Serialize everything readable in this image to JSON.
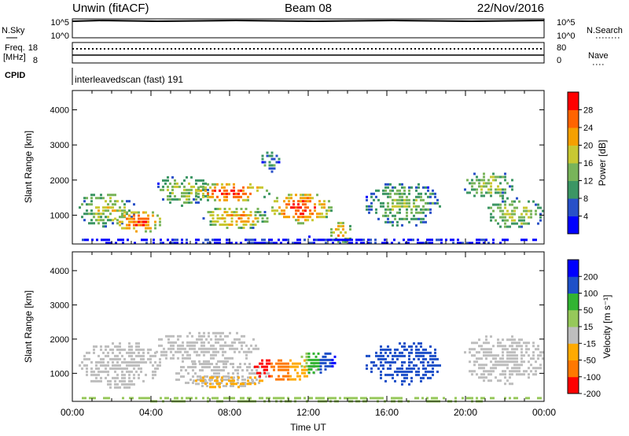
{
  "header": {
    "station": "Unwin (fitACF)",
    "beam": "Beam 08",
    "date": "22/Nov/2016"
  },
  "status_panels": {
    "nsky": {
      "label": "N.Sky",
      "tick_top": "10^5",
      "tick_bottom": "10^0",
      "right_label": "N.Search",
      "right_tick_top": "10^5",
      "right_tick_bottom": "10^0"
    },
    "freq": {
      "label_line1": "Freq.",
      "label_line2": "[MHz]",
      "tick_top": "18",
      "tick_bottom": "8",
      "right_label": "Nave",
      "right_tick_top": "80",
      "right_tick_bottom": "0"
    },
    "cpid": {
      "label": "CPID",
      "text": "interleavedscan (fast) 191"
    }
  },
  "chart_data": [
    {
      "type": "heatmap",
      "name": "power",
      "ylabel": "Slant Range [km]",
      "ylim": [
        180,
        4550
      ],
      "y_ticks": [
        "1000",
        "2000",
        "3000",
        "4000"
      ],
      "colorbar": {
        "title": "Power [dB]",
        "ticks": [
          "4",
          "8",
          "12",
          "16",
          "20",
          "24",
          "28"
        ],
        "range": [
          0,
          32
        ],
        "colors": [
          "#0000ff",
          "#2850c8",
          "#3c9664",
          "#78b45a",
          "#c8c832",
          "#f5a000",
          "#ff6400",
          "#ff0000"
        ]
      },
      "blobs": [
        {
          "t": [
            0.2,
            3.2
          ],
          "r": [
            700,
            1700
          ],
          "level": 0.55
        },
        {
          "t": [
            2.0,
            4.5
          ],
          "r": [
            500,
            1200
          ],
          "level": 0.85
        },
        {
          "t": [
            4.2,
            7.0
          ],
          "r": [
            1300,
            2200
          ],
          "level": 0.5
        },
        {
          "t": [
            6.0,
            10.0
          ],
          "r": [
            1400,
            2000
          ],
          "level": 0.9
        },
        {
          "t": [
            6.5,
            10.0
          ],
          "r": [
            600,
            1300
          ],
          "level": 0.7
        },
        {
          "t": [
            9.5,
            10.5
          ],
          "r": [
            2200,
            2900
          ],
          "level": 0.35
        },
        {
          "t": [
            10.0,
            13.2
          ],
          "r": [
            800,
            1700
          ],
          "level": 0.9
        },
        {
          "t": [
            13.0,
            14.2
          ],
          "r": [
            200,
            900
          ],
          "level": 0.7
        },
        {
          "t": [
            14.8,
            18.7
          ],
          "r": [
            700,
            2000
          ],
          "level": 0.45
        },
        {
          "t": [
            19.8,
            22.5
          ],
          "r": [
            1500,
            2300
          ],
          "level": 0.5
        },
        {
          "t": [
            21.0,
            24.0
          ],
          "r": [
            600,
            1600
          ],
          "level": 0.5
        },
        {
          "t": [
            0.0,
            24.0
          ],
          "r": [
            180,
            420
          ],
          "level": 0.1
        }
      ]
    },
    {
      "type": "heatmap",
      "name": "velocity",
      "xlabel": "Time UT",
      "ylabel": "Slant Range [km]",
      "xlim": [
        0,
        24
      ],
      "x_ticks": [
        "00:00",
        "04:00",
        "08:00",
        "12:00",
        "16:00",
        "20:00",
        "00:00"
      ],
      "ylim": [
        180,
        4550
      ],
      "y_ticks": [
        "1000",
        "2000",
        "3000",
        "4000"
      ],
      "colorbar": {
        "title": "Velocity [m s⁻¹]",
        "ticks": [
          "200",
          "100",
          "50",
          "15",
          "-15",
          "-50",
          "-100",
          "-200"
        ],
        "range": [
          -250,
          250
        ],
        "colors": [
          "#ff0000",
          "#ff7800",
          "#ffaa00",
          "#bebebe",
          "#96c85a",
          "#32b432",
          "#1e50c8",
          "#0000ff"
        ]
      },
      "blobs": [
        {
          "t": [
            0.2,
            4.5
          ],
          "r": [
            600,
            2000
          ],
          "vel": 0
        },
        {
          "t": [
            4.0,
            9.5
          ],
          "r": [
            1300,
            2300
          ],
          "vel": 0
        },
        {
          "t": [
            5.0,
            10.0
          ],
          "r": [
            600,
            1400
          ],
          "vel": 0
        },
        {
          "t": [
            6.0,
            9.8
          ],
          "r": [
            600,
            1000
          ],
          "vel": -70
        },
        {
          "t": [
            9.0,
            12.5
          ],
          "r": [
            800,
            1500
          ],
          "vel": -150
        },
        {
          "t": [
            11.5,
            13.5
          ],
          "r": [
            1000,
            1700
          ],
          "vel": 80
        },
        {
          "t": [
            14.8,
            18.8
          ],
          "r": [
            700,
            2000
          ],
          "vel": 150
        },
        {
          "t": [
            19.8,
            24.0
          ],
          "r": [
            700,
            2200
          ],
          "vel": 0
        },
        {
          "t": [
            0.0,
            24.0
          ],
          "r": [
            180,
            400
          ],
          "vel": 30
        }
      ]
    }
  ]
}
